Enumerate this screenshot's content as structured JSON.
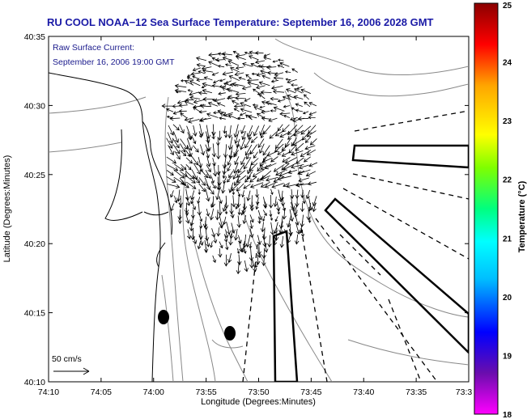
{
  "title": "RU COOL  NOAA−12  Sea Surface Temperature:  September 16, 2006 2028 GMT",
  "annotation": {
    "line1": "Raw Surface Current:",
    "line2": "September 16, 2006 19:00 GMT",
    "scale_label": "50 cm/s"
  },
  "chart_data": {
    "type": "map-vector-field",
    "xlabel": "Longitude (Degrees:Minutes)",
    "ylabel": "Latitude (Degrees:Minutes)",
    "x_ticks": [
      "74:10",
      "74:05",
      "74:00",
      "73:55",
      "73:50",
      "73:45",
      "73:40",
      "73:35",
      "73:3"
    ],
    "y_ticks": [
      "40:35",
      "40:30",
      "40:25",
      "40:20",
      "40:15",
      "40:10"
    ],
    "xlim": [
      -74.1667,
      -73.5
    ],
    "ylim": [
      40.1667,
      40.5833
    ],
    "colorbar": {
      "label": "Temperature (°C)",
      "ticks": [
        "25",
        "24",
        "23",
        "22",
        "21",
        "20",
        "19",
        "18"
      ],
      "range": [
        18,
        25
      ],
      "colors": [
        "#ff00ff",
        "#6a0dad",
        "#0000ff",
        "#00bfff",
        "#00ffff",
        "#00ff7f",
        "#7fff00",
        "#ffff00",
        "#ffa500",
        "#ff0000",
        "#8b0000"
      ]
    },
    "features": [
      "coastline",
      "bathymetry contours",
      "surface current vectors",
      "shipping lanes",
      "two buoy markers"
    ]
  }
}
